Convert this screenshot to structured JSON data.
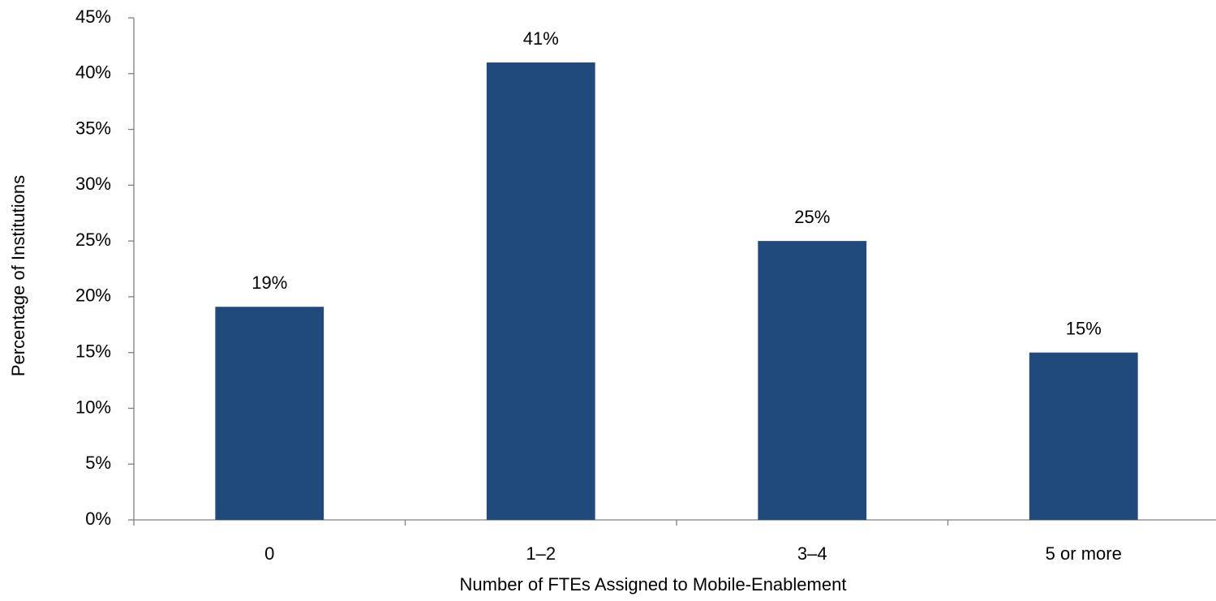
{
  "chart_data": {
    "type": "bar",
    "categories": [
      "0",
      "1–2",
      "3–4",
      "5 or more"
    ],
    "values": [
      19.1,
      41,
      25,
      15
    ],
    "value_labels": [
      "19%",
      "41%",
      "25%",
      "15%"
    ],
    "color": "#214a7c",
    "xlabel": "Number of FTEs Assigned to Mobile-Enablement",
    "ylabel": "Percentage of Institutions",
    "ylim": [
      0,
      45
    ],
    "yticks": [
      {
        "value": 0,
        "label": "0%"
      },
      {
        "value": 5,
        "label": "5%"
      },
      {
        "value": 10,
        "label": "10%"
      },
      {
        "value": 15,
        "label": "15%"
      },
      {
        "value": 20,
        "label": "20%"
      },
      {
        "value": 25,
        "label": "25%"
      },
      {
        "value": 30,
        "label": "30%"
      },
      {
        "value": 35,
        "label": "35%"
      },
      {
        "value": 40,
        "label": "40%"
      },
      {
        "value": 45,
        "label": "45%"
      }
    ],
    "grid": false
  }
}
